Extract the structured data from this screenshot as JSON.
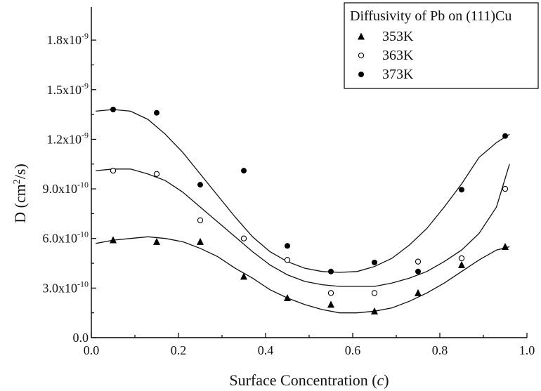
{
  "chart_data": {
    "type": "scatter",
    "title": "",
    "xlabel": "Surface Concentration (c)",
    "xlabel_main": "Surface Concentration (",
    "xlabel_var": "c",
    "xlabel_end": ")",
    "ylabel": "D (cm2/s)",
    "ylabel_main": "D (cm",
    "ylabel_sup": "2",
    "ylabel_end": "/s)",
    "xlim": [
      0.0,
      1.0
    ],
    "ylim": [
      0.0,
      2e-09
    ],
    "x_ticks": [
      {
        "value": 0.0,
        "label": "0.0"
      },
      {
        "value": 0.2,
        "label": "0.2"
      },
      {
        "value": 0.4,
        "label": "0.4"
      },
      {
        "value": 0.6,
        "label": "0.6"
      },
      {
        "value": 0.8,
        "label": "0.8"
      },
      {
        "value": 1.0,
        "label": "1.0"
      }
    ],
    "y_ticks": [
      {
        "value": 0.0,
        "base": "0.0",
        "exp": ""
      },
      {
        "value": 3e-10,
        "base": "3.0x10",
        "exp": "-10"
      },
      {
        "value": 6e-10,
        "base": "6.0x10",
        "exp": "-10"
      },
      {
        "value": 9e-10,
        "base": "9.0x10",
        "exp": "-10"
      },
      {
        "value": 1.2e-09,
        "base": "1.2x10",
        "exp": "-9"
      },
      {
        "value": 1.5e-09,
        "base": "1.5x10",
        "exp": "-9"
      },
      {
        "value": 1.8e-09,
        "base": "1.8x10",
        "exp": "-9"
      }
    ],
    "legend": {
      "title": "Diffusivity of Pb on (111)Cu",
      "placement": "top-right"
    },
    "series": [
      {
        "name": "353K",
        "marker": "triangle",
        "x": [
          0.05,
          0.15,
          0.25,
          0.35,
          0.45,
          0.55,
          0.65,
          0.75,
          0.85,
          0.95
        ],
        "y": [
          5.9e-10,
          5.8e-10,
          5.8e-10,
          3.7e-10,
          2.4e-10,
          2e-10,
          1.6e-10,
          2.7e-10,
          4.4e-10,
          5.5e-10
        ],
        "fit_x": [
          0.01,
          0.05,
          0.09,
          0.13,
          0.17,
          0.21,
          0.25,
          0.29,
          0.33,
          0.37,
          0.41,
          0.45,
          0.49,
          0.53,
          0.57,
          0.61,
          0.65,
          0.69,
          0.73,
          0.77,
          0.81,
          0.85,
          0.89,
          0.93,
          0.96
        ],
        "fit_y": [
          5.7e-10,
          5.9e-10,
          6e-10,
          6.1e-10,
          6e-10,
          5.8e-10,
          5.4e-10,
          4.9e-10,
          4.2e-10,
          3.6e-10,
          2.9e-10,
          2.4e-10,
          2e-10,
          1.7e-10,
          1.5e-10,
          1.5e-10,
          1.6e-10,
          1.8e-10,
          2.2e-10,
          2.7e-10,
          3.3e-10,
          4e-10,
          4.7e-10,
          5.3e-10,
          5.5e-10
        ]
      },
      {
        "name": "363K",
        "marker": "open-circle",
        "x": [
          0.05,
          0.15,
          0.25,
          0.35,
          0.45,
          0.55,
          0.65,
          0.75,
          0.85,
          0.95
        ],
        "y": [
          1.01e-09,
          9.9e-10,
          7.1e-10,
          6e-10,
          4.7e-10,
          2.7e-10,
          2.7e-10,
          4.6e-10,
          4.8e-10,
          9e-10
        ],
        "fit_x": [
          0.01,
          0.05,
          0.09,
          0.13,
          0.17,
          0.21,
          0.25,
          0.29,
          0.33,
          0.37,
          0.41,
          0.45,
          0.49,
          0.53,
          0.57,
          0.61,
          0.65,
          0.69,
          0.73,
          0.77,
          0.81,
          0.85,
          0.89,
          0.93,
          0.96
        ],
        "fit_y": [
          1.01e-09,
          1.02e-09,
          1.02e-09,
          9.9e-10,
          9.5e-10,
          8.8e-10,
          7.9e-10,
          7e-10,
          6.1e-10,
          5.2e-10,
          4.4e-10,
          3.8e-10,
          3.4e-10,
          3.2e-10,
          3.1e-10,
          3.1e-10,
          3.1e-10,
          3.3e-10,
          3.6e-10,
          4e-10,
          4.6e-10,
          5.3e-10,
          6.3e-10,
          7.9e-10,
          1.05e-09
        ]
      },
      {
        "name": "373K",
        "marker": "filled-circle",
        "x": [
          0.05,
          0.15,
          0.25,
          0.35,
          0.45,
          0.55,
          0.65,
          0.75,
          0.85,
          0.95
        ],
        "y": [
          1.38e-09,
          1.36e-09,
          9.25e-10,
          1.01e-09,
          5.55e-10,
          4e-10,
          4.55e-10,
          4e-10,
          8.95e-10,
          1.22e-09
        ],
        "fit_x": [
          0.01,
          0.05,
          0.09,
          0.13,
          0.17,
          0.21,
          0.25,
          0.29,
          0.33,
          0.37,
          0.41,
          0.45,
          0.49,
          0.53,
          0.57,
          0.61,
          0.65,
          0.69,
          0.73,
          0.77,
          0.81,
          0.85,
          0.89,
          0.93,
          0.96
        ],
        "fit_y": [
          1.37e-09,
          1.38e-09,
          1.37e-09,
          1.32e-09,
          1.23e-09,
          1.12e-09,
          9.9e-10,
          8.6e-10,
          7.3e-10,
          6.1e-10,
          5.2e-10,
          4.6e-10,
          4.2e-10,
          4e-10,
          3.95e-10,
          4e-10,
          4.3e-10,
          4.8e-10,
          5.6e-10,
          6.6e-10,
          7.9e-10,
          9.3e-10,
          1.09e-09,
          1.18e-09,
          1.23e-09
        ]
      }
    ]
  }
}
